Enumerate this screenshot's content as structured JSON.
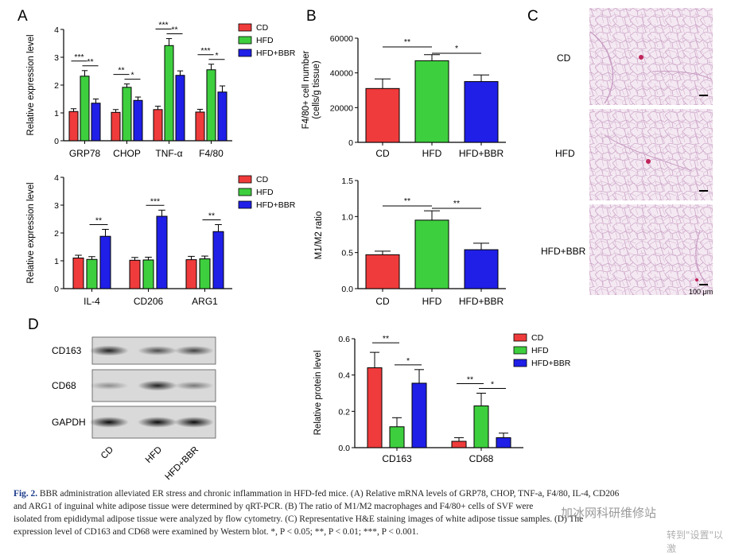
{
  "panel_letters": {
    "a": "A",
    "b": "B",
    "c": "C",
    "d": "D"
  },
  "colors": {
    "CD": "#ef3b3b",
    "HFD": "#3ecf3e",
    "HFD+BBR": "#1f1fe8"
  },
  "legend": [
    "CD",
    "HFD",
    "HFD+BBR"
  ],
  "chart_data": [
    {
      "id": "A1",
      "type": "bar",
      "ylabel": "Relative expression level",
      "ylim": [
        0,
        4
      ],
      "yticks": [
        "0",
        "1",
        "2",
        "3",
        "4"
      ],
      "categories": [
        "GRP78",
        "CHOP",
        "TNF-α",
        "F4/80"
      ],
      "series": [
        {
          "name": "CD",
          "values": [
            1.05,
            1.02,
            1.12,
            1.03
          ],
          "errors": [
            0.1,
            0.1,
            0.12,
            0.1
          ]
        },
        {
          "name": "HFD",
          "values": [
            2.32,
            1.92,
            3.42,
            2.55
          ],
          "errors": [
            0.2,
            0.12,
            0.25,
            0.2
          ]
        },
        {
          "name": "HFD+BBR",
          "values": [
            1.35,
            1.45,
            2.35,
            1.75
          ],
          "errors": [
            0.15,
            0.12,
            0.16,
            0.22
          ]
        }
      ],
      "significance": [
        {
          "category": 0,
          "pair": "CD-HFD",
          "label": "***"
        },
        {
          "category": 0,
          "pair": "HFD-BBR",
          "label": "**"
        },
        {
          "category": 1,
          "pair": "CD-HFD",
          "label": "**"
        },
        {
          "category": 1,
          "pair": "HFD-BBR",
          "label": "*"
        },
        {
          "category": 2,
          "pair": "CD-HFD",
          "label": "***"
        },
        {
          "category": 2,
          "pair": "HFD-BBR",
          "label": "**"
        },
        {
          "category": 3,
          "pair": "CD-HFD",
          "label": "***"
        },
        {
          "category": 3,
          "pair": "HFD-BBR",
          "label": "*"
        }
      ]
    },
    {
      "id": "A2",
      "type": "bar",
      "ylabel": "Relative expression level",
      "ylim": [
        0,
        4
      ],
      "yticks": [
        "0",
        "1",
        "2",
        "3",
        "4"
      ],
      "categories": [
        "IL-4",
        "CD206",
        "ARG1"
      ],
      "series": [
        {
          "name": "CD",
          "values": [
            1.1,
            1.02,
            1.04
          ],
          "errors": [
            0.1,
            0.1,
            0.12
          ]
        },
        {
          "name": "HFD",
          "values": [
            1.05,
            1.03,
            1.07
          ],
          "errors": [
            0.1,
            0.1,
            0.1
          ]
        },
        {
          "name": "HFD+BBR",
          "values": [
            1.88,
            2.6,
            2.05
          ],
          "errors": [
            0.25,
            0.22,
            0.25
          ]
        }
      ],
      "significance": [
        {
          "category": 0,
          "pair": "HFD-BBR",
          "label": "**"
        },
        {
          "category": 1,
          "pair": "HFD-BBR",
          "label": "***"
        },
        {
          "category": 2,
          "pair": "HFD-BBR",
          "label": "**"
        }
      ]
    },
    {
      "id": "B1",
      "type": "bar",
      "ylabel": "F4/80+ cell number\n(cells/g tissue)",
      "ylim": [
        0,
        60000
      ],
      "yticks": [
        "0",
        "20000",
        "40000",
        "60000"
      ],
      "categories": [
        "CD",
        "HFD",
        "HFD+BBR"
      ],
      "values": [
        31000,
        47000,
        35000
      ],
      "errors": [
        5500,
        3500,
        3800
      ],
      "significance": [
        {
          "pair": "CD-HFD",
          "label": "**"
        },
        {
          "pair": "HFD-BBR",
          "label": "*"
        }
      ]
    },
    {
      "id": "B2",
      "type": "bar",
      "ylabel": "M1/M2 ratio",
      "ylim": [
        0,
        1.5
      ],
      "yticks": [
        "0.0",
        "0.5",
        "1.0",
        "1.5"
      ],
      "categories": [
        "CD",
        "HFD",
        "HFD+BBR"
      ],
      "values": [
        0.47,
        0.95,
        0.54
      ],
      "errors": [
        0.05,
        0.13,
        0.09
      ],
      "significance": [
        {
          "pair": "CD-HFD",
          "label": "**"
        },
        {
          "pair": "HFD-BBR",
          "label": "**"
        }
      ]
    },
    {
      "id": "D2",
      "type": "bar",
      "ylabel": "Relative protein level",
      "ylim": [
        0,
        0.6
      ],
      "yticks": [
        "0.0",
        "0.2",
        "0.4",
        "0.6"
      ],
      "categories": [
        "CD163",
        "CD68"
      ],
      "series": [
        {
          "name": "CD",
          "values": [
            0.44,
            0.035
          ],
          "errors": [
            0.085,
            0.02
          ]
        },
        {
          "name": "HFD",
          "values": [
            0.115,
            0.23
          ],
          "errors": [
            0.05,
            0.07
          ]
        },
        {
          "name": "HFD+BBR",
          "values": [
            0.355,
            0.055
          ],
          "errors": [
            0.075,
            0.025
          ]
        }
      ],
      "significance": [
        {
          "category": 0,
          "pair": "CD-HFD",
          "label": "**"
        },
        {
          "category": 0,
          "pair": "HFD-BBR",
          "label": "*"
        },
        {
          "category": 1,
          "pair": "CD-HFD",
          "label": "**"
        },
        {
          "category": 1,
          "pair": "HFD-BBR",
          "label": "*"
        }
      ]
    }
  ],
  "histology": {
    "labels": [
      "CD",
      "HFD",
      "HFD+BBR"
    ],
    "scale_bar": "100 μm"
  },
  "blot": {
    "rows": [
      {
        "label": "CD163",
        "bands": [
          0.85,
          0.65,
          0.7
        ]
      },
      {
        "label": "CD68",
        "bands": [
          0.35,
          0.85,
          0.45
        ]
      },
      {
        "label": "GAPDH",
        "bands": [
          0.95,
          0.95,
          0.95
        ]
      }
    ],
    "lanes": [
      "CD",
      "HFD",
      "HFD+BBR"
    ]
  },
  "caption": {
    "label": "Fig. 2.",
    "lines": [
      " BBR administration alleviated ER stress and chronic inflammation in HFD-fed mice. (A) Relative mRNA levels of GRP78, CHOP, TNF-a, F4/80, IL-4, CD206",
      "and ARG1 of inguinal white adipose tissue were determined by qRT-PCR. (B) The ratio of M1/M2 macrophages and F4/80+ cells of SVF were",
      "isolated from epididymal adipose tissue were analyzed by flow cytometry. (C) Representative H&E staining images of white adipose tissue samples. (D) The",
      "expression level of CD163 and CD68 were examined by Western blot. *, P < 0.05; **, P < 0.01; ***, P < 0.001."
    ]
  },
  "watermark": {
    "line1": "加冰网科研维修站",
    "line2": "转到\"设置\"以激"
  }
}
